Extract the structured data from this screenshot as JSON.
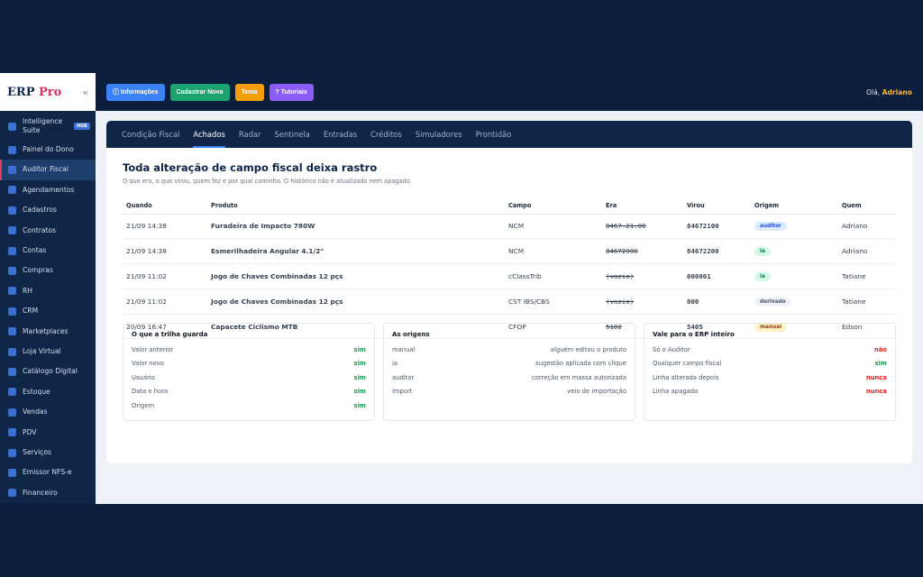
{
  "brand": {
    "name": "ERP",
    "suffix": "Pro",
    "collapse": "«"
  },
  "sidebar": {
    "items": [
      {
        "label": "Intelligence Suite",
        "badge": "HUB"
      },
      {
        "label": "Painel do Dono"
      },
      {
        "label": "Auditor Fiscal",
        "active": true
      },
      {
        "label": "Agendamentos"
      },
      {
        "label": "Cadastros"
      },
      {
        "label": "Contratos"
      },
      {
        "label": "Contas"
      },
      {
        "label": "Compras"
      },
      {
        "label": "RH"
      },
      {
        "label": "CRM"
      },
      {
        "label": "Marketplaces"
      },
      {
        "label": "Loja Virtual"
      },
      {
        "label": "Catálogo Digital"
      },
      {
        "label": "Estoque"
      },
      {
        "label": "Vendas"
      },
      {
        "label": "PDV"
      },
      {
        "label": "Serviços"
      },
      {
        "label": "Emissor NFS-e"
      },
      {
        "label": "Financeiro"
      }
    ]
  },
  "topbar": {
    "info": "ⓘ Informações",
    "new": "Cadastrar Novo",
    "theme": "Tema",
    "tutorials": "? Tutoriais",
    "greeting": "Olá,",
    "user": "Adriano"
  },
  "tabs": [
    "Condição Fiscal",
    "Achados",
    "Radar",
    "Sentinela",
    "Entradas",
    "Créditos",
    "Simuladores",
    "Prontidão"
  ],
  "page": {
    "title": "Toda alteração de campo fiscal deixa rastro",
    "subtitle": "O que era, o que virou, quem fez e por qual caminho. O histórico não é atualizado nem apagado."
  },
  "table": {
    "headers": [
      "Quando",
      "Produto",
      "Campo",
      "Era",
      "Virou",
      "Origem",
      "Quem"
    ],
    "rows": [
      {
        "when": "21/09 14:38",
        "product": "Furadeira de Impacto 780W",
        "field": "NCM",
        "was": "8467.21.00",
        "became": "84672100",
        "origin": "auditor",
        "who": "Adriano"
      },
      {
        "when": "21/09 14:38",
        "product": "Esmerilhadeira Angular 4.1/2\"",
        "field": "NCM",
        "was": "84672900",
        "became": "84672200",
        "origin": "ia",
        "who": "Adriano"
      },
      {
        "when": "21/09 11:02",
        "product": "Jogo de Chaves Combinadas 12 pçs",
        "field": "cClassTrib",
        "was": "(vazio)",
        "became": "000001",
        "origin": "ia",
        "who": "Tatiane"
      },
      {
        "when": "21/09 11:02",
        "product": "Jogo de Chaves Combinadas 12 pçs",
        "field": "CST IBS/CBS",
        "was": "(vazio)",
        "became": "000",
        "origin": "derivado",
        "who": "Tatiane"
      },
      {
        "when": "20/09 16:47",
        "product": "Capacete Ciclismo MTB",
        "field": "CFOP",
        "was": "5102",
        "became": "5405",
        "origin": "manual",
        "who": "Edson"
      }
    ]
  },
  "boxes": [
    {
      "title": "O que a trilha guarda",
      "rows": [
        {
          "k": "Valor anterior",
          "v": "sim",
          "tone": "ok"
        },
        {
          "k": "Valor novo",
          "v": "sim",
          "tone": "ok"
        },
        {
          "k": "Usuário",
          "v": "sim",
          "tone": "ok"
        },
        {
          "k": "Data e hora",
          "v": "sim",
          "tone": "ok"
        },
        {
          "k": "Origem",
          "v": "sim",
          "tone": "ok"
        }
      ]
    },
    {
      "title": "As origens",
      "rows": [
        {
          "k": "manual",
          "v": "alguém editou o produto",
          "tone": "plain"
        },
        {
          "k": "ia",
          "v": "sugestão aplicada com clique",
          "tone": "plain"
        },
        {
          "k": "auditor",
          "v": "correção em massa autorizada",
          "tone": "plain"
        },
        {
          "k": "import",
          "v": "veio de importação",
          "tone": "plain"
        }
      ]
    },
    {
      "title": "Vale para o ERP inteiro",
      "rows": [
        {
          "k": "Só o Auditor",
          "v": "não",
          "tone": "no"
        },
        {
          "k": "Qualquer campo fiscal",
          "v": "sim",
          "tone": "ok"
        },
        {
          "k": "Linha alterada depois",
          "v": "nunca",
          "tone": "no"
        },
        {
          "k": "Linha apagada",
          "v": "nunca",
          "tone": "no"
        }
      ]
    }
  ],
  "colors": {
    "accent": "#3b82f6",
    "brand_accent": "#d63060",
    "sidebar_bg": "#0f2647"
  }
}
